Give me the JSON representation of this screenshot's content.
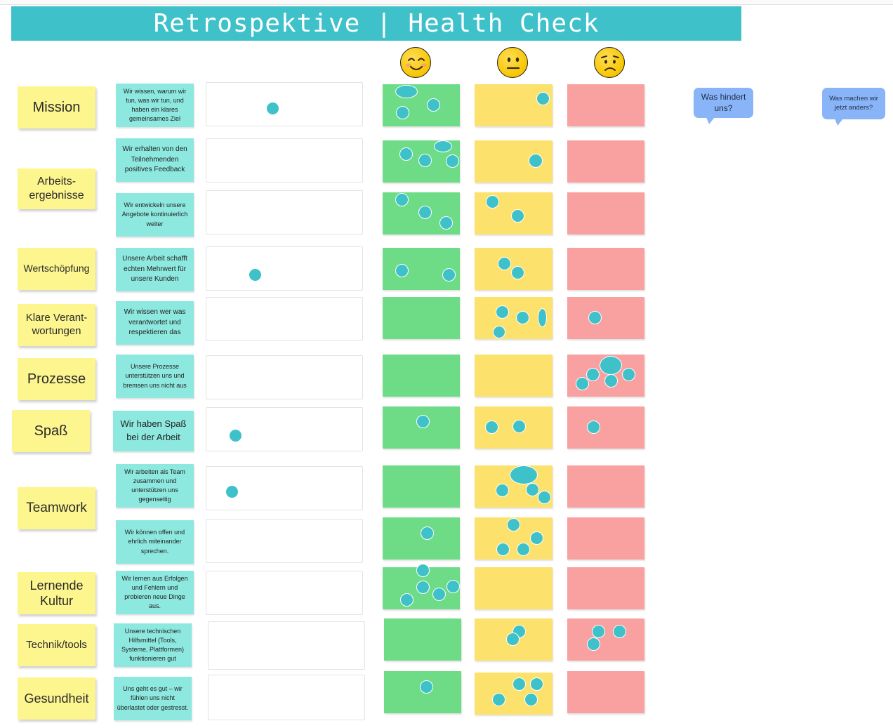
{
  "title": "Retrospektive | Health Check",
  "columns": [
    "happy-face-icon",
    "neutral-face-icon",
    "sad-face-icon"
  ],
  "bubbles": {
    "obstacles": "Was hindert uns?",
    "changes": "Was machen wir jetzt anders?"
  },
  "topics": {
    "mission": "Mission",
    "arbeitsergebnisse": "Arbeits-ergebnisse",
    "wertschoepfung": "Wertschöpfung",
    "verantwortungen": "Klare Verant-wortungen",
    "prozesse": "Prozesse",
    "spass": "Spaß",
    "teamwork": "Teamwork",
    "lernende_kultur": "Lernende Kultur",
    "technik": "Technik/tools",
    "gesundheit": "Gesundheit"
  },
  "rows": [
    {
      "desc": "Wir wissen, warum wir tun, was wir tun, und haben ein klares gemeinsames Ziel",
      "votes": {
        "scale": 1,
        "green": 3,
        "yellow": 1,
        "red": 0
      }
    },
    {
      "desc": "Wir erhalten von den Teilnehmenden positives Feedback",
      "votes": {
        "scale": 0,
        "green": 4,
        "yellow": 1,
        "red": 0
      }
    },
    {
      "desc": "Wir entwickeln unsere Angebote kontinuierlich weiter",
      "votes": {
        "scale": 0,
        "green": 3,
        "yellow": 2,
        "red": 0
      }
    },
    {
      "desc": "Unsere Arbeit schafft echten Mehrwert für unsere Kunden",
      "votes": {
        "scale": 1,
        "green": 2,
        "yellow": 2,
        "red": 0
      }
    },
    {
      "desc": "Wir wissen wer was verantwortet und respektieren das",
      "votes": {
        "scale": 0,
        "green": 0,
        "yellow": 4,
        "red": 1
      }
    },
    {
      "desc": "Unsere Prozesse unterstützen uns und bremsen uns nicht aus",
      "votes": {
        "scale": 0,
        "green": 0,
        "yellow": 0,
        "red": 5
      }
    },
    {
      "desc": "Wir haben Spaß bei der Arbeit",
      "votes": {
        "scale": 1,
        "green": 1,
        "yellow": 2,
        "red": 1
      }
    },
    {
      "desc": "Wir arbeiten als Team zusammen und unterstützen uns gegenseitig",
      "votes": {
        "scale": 1,
        "green": 0,
        "yellow": 4,
        "red": 0
      }
    },
    {
      "desc": "Wir können offen und ehrlich miteinander sprechen.",
      "votes": {
        "scale": 0,
        "green": 1,
        "yellow": 4,
        "red": 0
      }
    },
    {
      "desc": "Wir lernen aus Erfolgen und Fehlern und probieren neue Dinge aus.",
      "votes": {
        "scale": 0,
        "green": 5,
        "yellow": 0,
        "red": 0
      }
    },
    {
      "desc": "Unsere technischen Hilfsmittel (Tools, Systeme, Plattformen) funktionieren gut",
      "votes": {
        "scale": 0,
        "green": 0,
        "yellow": 2,
        "red": 3
      }
    },
    {
      "desc": "Uns geht es gut – wir fühlen uns nicht überlastet oder gestresst.",
      "votes": {
        "scale": 0,
        "green": 1,
        "yellow": 4,
        "red": 0
      }
    }
  ]
}
